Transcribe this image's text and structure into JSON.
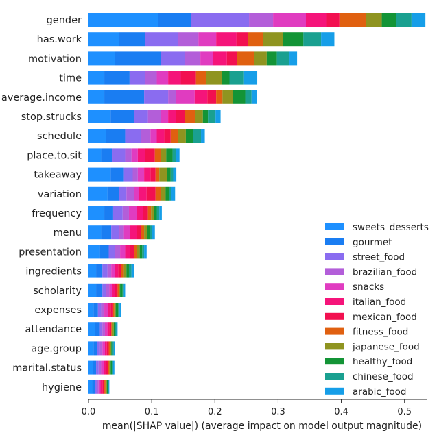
{
  "chart_data": {
    "type": "bar",
    "orientation": "horizontal",
    "stacked": true,
    "xlabel": "mean(|SHAP value|) (average impact on model output magnitude)",
    "ylabel": "",
    "xlim": [
      0,
      0.535
    ],
    "xticks": [
      "0.0",
      "0.1",
      "0.2",
      "0.3",
      "0.4",
      "0.5"
    ],
    "xtick_values": [
      0,
      0.1,
      0.2,
      0.3,
      0.4,
      0.5
    ],
    "legend_position": "bottom-right",
    "categories": [
      "gender",
      "has.work",
      "motivation",
      "time",
      "average.income",
      "stop.strucks",
      "schedule",
      "place.to.sit",
      "takeaway",
      "variation",
      "frequency",
      "menu",
      "presentation",
      "ingredients",
      "scholarity",
      "expenses",
      "attendance",
      "age.group",
      "marital.status",
      "hygiene"
    ],
    "series": [
      {
        "name": "sweets_desserts",
        "color": "#1e90ff",
        "values": [
          0.11,
          0.048,
          0.042,
          0.025,
          0.025,
          0.035,
          0.028,
          0.02,
          0.035,
          0.03,
          0.025,
          0.02,
          0.018,
          0.012,
          0.012,
          0.008,
          0.01,
          0.008,
          0.007,
          0.006
        ]
      },
      {
        "name": "gourmet",
        "color": "#1a7df2",
        "values": [
          0.052,
          0.042,
          0.072,
          0.04,
          0.063,
          0.037,
          0.03,
          0.018,
          0.021,
          0.018,
          0.014,
          0.016,
          0.014,
          0.01,
          0.01,
          0.007,
          0.008,
          0.006,
          0.005,
          0.004
        ]
      },
      {
        "name": "street_food",
        "color": "#8a6cf0",
        "values": [
          0.092,
          0.052,
          0.038,
          0.025,
          0.038,
          0.022,
          0.025,
          0.02,
          0.014,
          0.012,
          0.015,
          0.012,
          0.01,
          0.008,
          0.006,
          0.005,
          0.004,
          0.004,
          0.004,
          0.003
        ]
      },
      {
        "name": "brazilian_food",
        "color": "#b35ed9",
        "values": [
          0.038,
          0.032,
          0.025,
          0.018,
          0.012,
          0.02,
          0.015,
          0.01,
          0.008,
          0.012,
          0.01,
          0.008,
          0.008,
          0.006,
          0.005,
          0.005,
          0.004,
          0.004,
          0.004,
          0.003
        ]
      },
      {
        "name": "snacks",
        "color": "#e03cc0",
        "values": [
          0.052,
          0.028,
          0.02,
          0.018,
          0.03,
          0.012,
          0.01,
          0.01,
          0.01,
          0.008,
          0.012,
          0.01,
          0.008,
          0.006,
          0.005,
          0.006,
          0.004,
          0.004,
          0.004,
          0.003
        ]
      },
      {
        "name": "italian_food",
        "color": "#f5147a",
        "values": [
          0.032,
          0.032,
          0.022,
          0.02,
          0.02,
          0.012,
          0.012,
          0.012,
          0.01,
          0.012,
          0.01,
          0.01,
          0.008,
          0.005,
          0.004,
          0.004,
          0.003,
          0.003,
          0.004,
          0.003
        ]
      },
      {
        "name": "mexican_food",
        "color": "#f21050",
        "values": [
          0.021,
          0.018,
          0.016,
          0.024,
          0.014,
          0.015,
          0.01,
          0.015,
          0.008,
          0.014,
          0.008,
          0.007,
          0.006,
          0.004,
          0.004,
          0.004,
          0.003,
          0.003,
          0.003,
          0.003
        ]
      },
      {
        "name": "fitness_food",
        "color": "#e06010",
        "values": [
          0.042,
          0.024,
          0.027,
          0.016,
          0.01,
          0.016,
          0.012,
          0.01,
          0.006,
          0.008,
          0.005,
          0.005,
          0.005,
          0.005,
          0.002,
          0.002,
          0.002,
          0.002,
          0.002,
          0.002
        ]
      },
      {
        "name": "japanese_food",
        "color": "#8f9420",
        "values": [
          0.025,
          0.032,
          0.02,
          0.025,
          0.016,
          0.012,
          0.012,
          0.008,
          0.012,
          0.008,
          0.005,
          0.005,
          0.004,
          0.004,
          0.002,
          0.002,
          0.002,
          0.002,
          0.002,
          0.002
        ]
      },
      {
        "name": "healthy_food",
        "color": "#139436",
        "values": [
          0.023,
          0.032,
          0.016,
          0.012,
          0.02,
          0.008,
          0.012,
          0.01,
          0.006,
          0.005,
          0.004,
          0.004,
          0.004,
          0.004,
          0.004,
          0.004,
          0.002,
          0.002,
          0.002,
          0.002
        ]
      },
      {
        "name": "chinese_food",
        "color": "#1aa090",
        "values": [
          0.024,
          0.028,
          0.02,
          0.022,
          0.01,
          0.012,
          0.012,
          0.005,
          0.004,
          0.004,
          0.004,
          0.003,
          0.003,
          0.004,
          0.002,
          0.002,
          0.002,
          0.002,
          0.002,
          0.001
        ]
      },
      {
        "name": "arabic_food",
        "color": "#169ee8",
        "values": [
          0.022,
          0.021,
          0.012,
          0.022,
          0.008,
          0.008,
          0.006,
          0.006,
          0.005,
          0.006,
          0.004,
          0.005,
          0.004,
          0.004,
          0.002,
          0.002,
          0.002,
          0.002,
          0.002,
          0.001
        ]
      }
    ]
  }
}
